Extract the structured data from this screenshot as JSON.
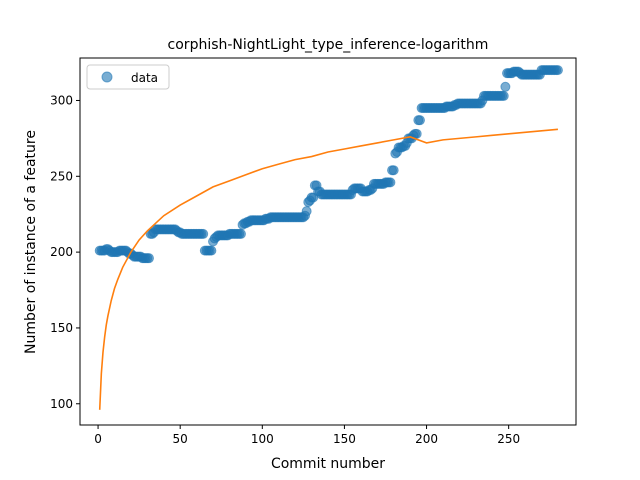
{
  "chart_data": {
    "type": "scatter",
    "title": "corphish-NightLight_type_inference-logarithm",
    "xlabel": "Commit number",
    "ylabel": "Number of instance of a feature",
    "xlim": [
      -11,
      291
    ],
    "ylim": [
      86,
      328
    ],
    "xticks": [
      0,
      50,
      100,
      150,
      200,
      250
    ],
    "yticks": [
      100,
      150,
      200,
      250,
      300
    ],
    "grid": false,
    "legend": {
      "placement": "top-left",
      "entries": [
        "data"
      ]
    },
    "colors": {
      "points": "#1f77b4",
      "fit": "#ff7f0e"
    },
    "series": [
      {
        "name": "data",
        "kind": "scatter",
        "points": [
          [
            1,
            201
          ],
          [
            2,
            201
          ],
          [
            3,
            201
          ],
          [
            4,
            201
          ],
          [
            5,
            202
          ],
          [
            6,
            202
          ],
          [
            7,
            201
          ],
          [
            8,
            200
          ],
          [
            9,
            200
          ],
          [
            10,
            200
          ],
          [
            11,
            200
          ],
          [
            12,
            200
          ],
          [
            13,
            201
          ],
          [
            14,
            201
          ],
          [
            15,
            201
          ],
          [
            16,
            201
          ],
          [
            17,
            201
          ],
          [
            18,
            200
          ],
          [
            19,
            199
          ],
          [
            20,
            199
          ],
          [
            21,
            198
          ],
          [
            22,
            197
          ],
          [
            23,
            197
          ],
          [
            24,
            197
          ],
          [
            25,
            197
          ],
          [
            26,
            197
          ],
          [
            27,
            196
          ],
          [
            28,
            196
          ],
          [
            29,
            196
          ],
          [
            30,
            196
          ],
          [
            31,
            196
          ],
          [
            32,
            212
          ],
          [
            33,
            212
          ],
          [
            34,
            213
          ],
          [
            35,
            215
          ],
          [
            36,
            215
          ],
          [
            37,
            215
          ],
          [
            38,
            215
          ],
          [
            39,
            215
          ],
          [
            40,
            215
          ],
          [
            41,
            215
          ],
          [
            42,
            215
          ],
          [
            43,
            215
          ],
          [
            44,
            215
          ],
          [
            45,
            215
          ],
          [
            46,
            215
          ],
          [
            47,
            215
          ],
          [
            48,
            214
          ],
          [
            49,
            213
          ],
          [
            50,
            213
          ],
          [
            51,
            212
          ],
          [
            52,
            212
          ],
          [
            53,
            212
          ],
          [
            54,
            212
          ],
          [
            55,
            212
          ],
          [
            56,
            212
          ],
          [
            57,
            212
          ],
          [
            58,
            212
          ],
          [
            59,
            212
          ],
          [
            60,
            212
          ],
          [
            61,
            212
          ],
          [
            62,
            212
          ],
          [
            63,
            212
          ],
          [
            64,
            212
          ],
          [
            65,
            201
          ],
          [
            66,
            201
          ],
          [
            67,
            201
          ],
          [
            68,
            201
          ],
          [
            69,
            201
          ],
          [
            70,
            207
          ],
          [
            71,
            209
          ],
          [
            72,
            210
          ],
          [
            73,
            211
          ],
          [
            74,
            211
          ],
          [
            75,
            211
          ],
          [
            76,
            211
          ],
          [
            77,
            211
          ],
          [
            78,
            211
          ],
          [
            79,
            211
          ],
          [
            80,
            212
          ],
          [
            81,
            212
          ],
          [
            82,
            212
          ],
          [
            83,
            212
          ],
          [
            84,
            212
          ],
          [
            85,
            212
          ],
          [
            86,
            212
          ],
          [
            87,
            212
          ],
          [
            88,
            218
          ],
          [
            89,
            219
          ],
          [
            90,
            219
          ],
          [
            91,
            220
          ],
          [
            92,
            220
          ],
          [
            93,
            221
          ],
          [
            94,
            221
          ],
          [
            95,
            221
          ],
          [
            96,
            221
          ],
          [
            97,
            221
          ],
          [
            98,
            221
          ],
          [
            99,
            221
          ],
          [
            100,
            221
          ],
          [
            101,
            221
          ],
          [
            102,
            222
          ],
          [
            103,
            222
          ],
          [
            104,
            222
          ],
          [
            105,
            223
          ],
          [
            106,
            223
          ],
          [
            107,
            223
          ],
          [
            108,
            223
          ],
          [
            109,
            223
          ],
          [
            110,
            223
          ],
          [
            111,
            223
          ],
          [
            112,
            223
          ],
          [
            113,
            223
          ],
          [
            114,
            223
          ],
          [
            115,
            223
          ],
          [
            116,
            223
          ],
          [
            117,
            223
          ],
          [
            118,
            223
          ],
          [
            119,
            223
          ],
          [
            120,
            223
          ],
          [
            121,
            223
          ],
          [
            122,
            223
          ],
          [
            123,
            223
          ],
          [
            124,
            223
          ],
          [
            125,
            223
          ],
          [
            126,
            224
          ],
          [
            127,
            227
          ],
          [
            128,
            233
          ],
          [
            129,
            234
          ],
          [
            130,
            236
          ],
          [
            131,
            236
          ],
          [
            132,
            244
          ],
          [
            133,
            244
          ],
          [
            134,
            240
          ],
          [
            135,
            240
          ],
          [
            136,
            238
          ],
          [
            137,
            238
          ],
          [
            138,
            238
          ],
          [
            139,
            238
          ],
          [
            140,
            238
          ],
          [
            141,
            238
          ],
          [
            142,
            238
          ],
          [
            143,
            238
          ],
          [
            144,
            238
          ],
          [
            145,
            238
          ],
          [
            146,
            238
          ],
          [
            147,
            238
          ],
          [
            148,
            238
          ],
          [
            149,
            238
          ],
          [
            150,
            238
          ],
          [
            151,
            238
          ],
          [
            152,
            238
          ],
          [
            153,
            238
          ],
          [
            154,
            238
          ],
          [
            155,
            241
          ],
          [
            156,
            242
          ],
          [
            157,
            242
          ],
          [
            158,
            242
          ],
          [
            159,
            242
          ],
          [
            160,
            242
          ],
          [
            161,
            240
          ],
          [
            162,
            240
          ],
          [
            163,
            240
          ],
          [
            164,
            240
          ],
          [
            165,
            241
          ],
          [
            166,
            241
          ],
          [
            167,
            242
          ],
          [
            168,
            245
          ],
          [
            169,
            245
          ],
          [
            170,
            245
          ],
          [
            171,
            245
          ],
          [
            172,
            245
          ],
          [
            173,
            245
          ],
          [
            174,
            245
          ],
          [
            175,
            246
          ],
          [
            176,
            246
          ],
          [
            177,
            246
          ],
          [
            178,
            246
          ],
          [
            179,
            254
          ],
          [
            180,
            254
          ],
          [
            181,
            265
          ],
          [
            182,
            266
          ],
          [
            183,
            269
          ],
          [
            184,
            269
          ],
          [
            185,
            269
          ],
          [
            186,
            270
          ],
          [
            187,
            270
          ],
          [
            188,
            272
          ],
          [
            189,
            275
          ],
          [
            190,
            275
          ],
          [
            191,
            275
          ],
          [
            192,
            277
          ],
          [
            193,
            278
          ],
          [
            194,
            278
          ],
          [
            195,
            287
          ],
          [
            196,
            287
          ],
          [
            197,
            295
          ],
          [
            198,
            295
          ],
          [
            199,
            295
          ],
          [
            200,
            295
          ],
          [
            201,
            295
          ],
          [
            202,
            295
          ],
          [
            203,
            295
          ],
          [
            204,
            295
          ],
          [
            205,
            295
          ],
          [
            206,
            295
          ],
          [
            207,
            295
          ],
          [
            208,
            295
          ],
          [
            209,
            295
          ],
          [
            210,
            295
          ],
          [
            211,
            295
          ],
          [
            212,
            296
          ],
          [
            213,
            296
          ],
          [
            214,
            296
          ],
          [
            215,
            296
          ],
          [
            216,
            296
          ],
          [
            217,
            297
          ],
          [
            218,
            297
          ],
          [
            219,
            298
          ],
          [
            220,
            298
          ],
          [
            221,
            298
          ],
          [
            222,
            298
          ],
          [
            223,
            298
          ],
          [
            224,
            298
          ],
          [
            225,
            298
          ],
          [
            226,
            298
          ],
          [
            227,
            298
          ],
          [
            228,
            298
          ],
          [
            229,
            298
          ],
          [
            230,
            298
          ],
          [
            231,
            298
          ],
          [
            232,
            298
          ],
          [
            233,
            298
          ],
          [
            234,
            300
          ],
          [
            235,
            303
          ],
          [
            236,
            303
          ],
          [
            237,
            303
          ],
          [
            238,
            303
          ],
          [
            239,
            303
          ],
          [
            240,
            303
          ],
          [
            241,
            303
          ],
          [
            242,
            303
          ],
          [
            243,
            303
          ],
          [
            244,
            303
          ],
          [
            245,
            303
          ],
          [
            246,
            303
          ],
          [
            247,
            303
          ],
          [
            248,
            309
          ],
          [
            249,
            318
          ],
          [
            250,
            318
          ],
          [
            251,
            318
          ],
          [
            252,
            318
          ],
          [
            253,
            319
          ],
          [
            254,
            319
          ],
          [
            255,
            319
          ],
          [
            256,
            319
          ],
          [
            257,
            318
          ],
          [
            258,
            317
          ],
          [
            259,
            317
          ],
          [
            260,
            317
          ],
          [
            261,
            317
          ],
          [
            262,
            317
          ],
          [
            263,
            317
          ],
          [
            264,
            317
          ],
          [
            265,
            317
          ],
          [
            266,
            317
          ],
          [
            267,
            317
          ],
          [
            268,
            317
          ],
          [
            269,
            317
          ],
          [
            270,
            320
          ],
          [
            271,
            320
          ],
          [
            272,
            320
          ],
          [
            273,
            320
          ],
          [
            274,
            320
          ],
          [
            275,
            320
          ],
          [
            276,
            320
          ],
          [
            277,
            320
          ],
          [
            278,
            320
          ],
          [
            279,
            320
          ],
          [
            280,
            320
          ]
        ]
      },
      {
        "kind": "line",
        "fit": "logarithmic",
        "points": [
          [
            1,
            96
          ],
          [
            2,
            120
          ],
          [
            3,
            134
          ],
          [
            4,
            144
          ],
          [
            5,
            152
          ],
          [
            6,
            158
          ],
          [
            8,
            168
          ],
          [
            10,
            176
          ],
          [
            12,
            182
          ],
          [
            15,
            190
          ],
          [
            20,
            200
          ],
          [
            25,
            208
          ],
          [
            30,
            214
          ],
          [
            40,
            224
          ],
          [
            50,
            231
          ],
          [
            60,
            237
          ],
          [
            70,
            243
          ],
          [
            80,
            247
          ],
          [
            90,
            251
          ],
          [
            100,
            255
          ],
          [
            110,
            258
          ],
          [
            120,
            261
          ],
          [
            130,
            263
          ],
          [
            140,
            266
          ],
          [
            150,
            268
          ],
          [
            160,
            270
          ],
          [
            170,
            272
          ],
          [
            180,
            274
          ],
          [
            190,
            276
          ],
          [
            200,
            272
          ],
          [
            210,
            274
          ],
          [
            220,
            275
          ],
          [
            230,
            276
          ],
          [
            240,
            277
          ],
          [
            250,
            278
          ],
          [
            260,
            279
          ],
          [
            270,
            280
          ],
          [
            280,
            281
          ]
        ]
      }
    ]
  }
}
